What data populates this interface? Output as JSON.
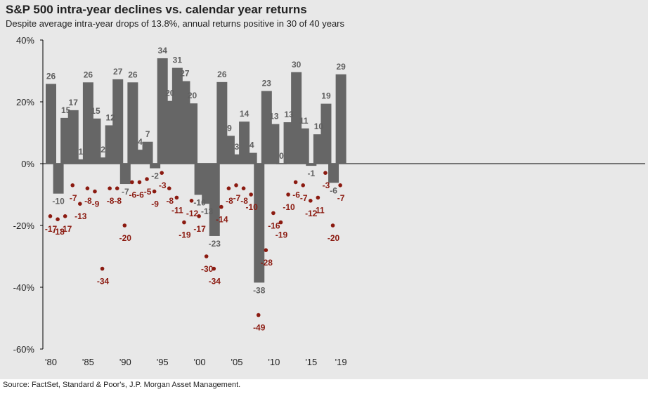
{
  "header": {
    "title": "S&P 500 intra-year declines vs. calendar year returns",
    "subtitle": "Despite average intra-year drops of 13.8%, annual returns positive in 30 of 40 years"
  },
  "footer": {
    "source": "Source: FactSet, Standard & Poor's, J.P. Morgan Asset Management."
  },
  "chart_data": {
    "type": "bar",
    "x": [
      1980,
      1981,
      1982,
      1983,
      1984,
      1985,
      1986,
      1987,
      1988,
      1989,
      1990,
      1991,
      1992,
      1993,
      1994,
      1995,
      1996,
      1997,
      1998,
      1999,
      2000,
      2001,
      2002,
      2003,
      2004,
      2005,
      2006,
      2007,
      2008,
      2009,
      2010,
      2011,
      2012,
      2013,
      2014,
      2015,
      2016,
      2017,
      2018,
      2019
    ],
    "x_tick_labels": [
      "'80",
      "'85",
      "'90",
      "'95",
      "'00",
      "'05",
      "'10",
      "'15",
      "'19"
    ],
    "x_tick_years": [
      1980,
      1985,
      1990,
      1995,
      2000,
      2005,
      2010,
      2015,
      2019
    ],
    "y_tick_labels": [
      "40%",
      "20%",
      "0%",
      "-20%",
      "-40%",
      "-60%"
    ],
    "ylim": [
      -60,
      40
    ],
    "series": [
      {
        "mark": "bar",
        "values": [
          25.8,
          -9.7,
          14.8,
          17.3,
          1.4,
          26.3,
          14.6,
          2.0,
          12.4,
          27.3,
          -6.6,
          26.3,
          4.5,
          7.1,
          -1.5,
          34.1,
          20.3,
          31.0,
          26.7,
          19.5,
          -10.1,
          -13.0,
          -23.4,
          26.4,
          9.0,
          3.0,
          13.6,
          3.5,
          -38.5,
          23.5,
          12.8,
          0.0,
          13.4,
          29.6,
          11.4,
          -0.7,
          9.5,
          19.4,
          -6.2,
          28.9
        ],
        "labels": [
          "26",
          "-10",
          "15",
          "17",
          "1",
          "26",
          "15",
          "2",
          "12",
          "27",
          "-7",
          "26",
          "4",
          "7",
          "-2",
          "34",
          "20",
          "31",
          "27",
          "20",
          "-10",
          "-13",
          "-23",
          "26",
          "9",
          "3",
          "14",
          "4",
          "-38",
          "23",
          "13",
          "0",
          "13",
          "30",
          "11",
          "-1",
          "10",
          "19",
          "-6",
          "29"
        ],
        "color": "#666666"
      },
      {
        "mark": "dot",
        "values": [
          -17,
          -18,
          -17,
          -7,
          -13,
          -8,
          -9,
          -34,
          -8,
          -8,
          -20,
          -6,
          -6,
          -5,
          -9,
          -3,
          -8,
          -11,
          -19,
          -12,
          -17,
          -30,
          -34,
          -14,
          -8,
          -7,
          -8,
          -10,
          -49,
          -28,
          -16,
          -19,
          -10,
          -6,
          -7,
          -12,
          -11,
          -3,
          -20,
          -7
        ],
        "labels": [
          "-17",
          "-18",
          "-17",
          "-7",
          "-13",
          "-8",
          "-9",
          "-34",
          "-8",
          "-8",
          "-20",
          "-6",
          "-6",
          "-5",
          "-9",
          "-3",
          "-8",
          "-11",
          "-19",
          "-12",
          "-17",
          "-30",
          "-34",
          "-14",
          "-8",
          "-7",
          "-8",
          "-10",
          "-49",
          "-28",
          "-16",
          "-19",
          "-10",
          "-6",
          "-7",
          "-12",
          "-11",
          "-3",
          "-20",
          "-7"
        ],
        "color": "#8b1a10"
      }
    ],
    "grid": false
  }
}
